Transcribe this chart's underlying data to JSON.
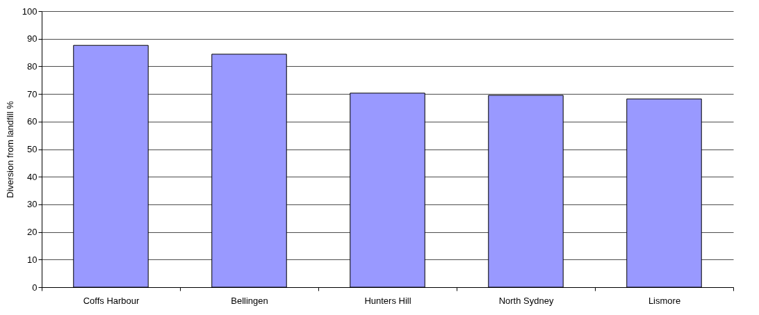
{
  "chart_data": {
    "type": "bar",
    "ylabel": "Diversion from landfill %",
    "categories": [
      "Coffs Harbour",
      "Bellingen",
      "Hunters Hill",
      "North Sydney",
      "Lismore"
    ],
    "values": [
      87.6,
      84.4,
      70.3,
      69.5,
      68.2
    ],
    "color": "#9999ff",
    "ylim": [
      0,
      100
    ],
    "yticks": [
      0,
      10,
      20,
      30,
      40,
      50,
      60,
      70,
      80,
      90,
      100
    ],
    "grid": "y"
  }
}
